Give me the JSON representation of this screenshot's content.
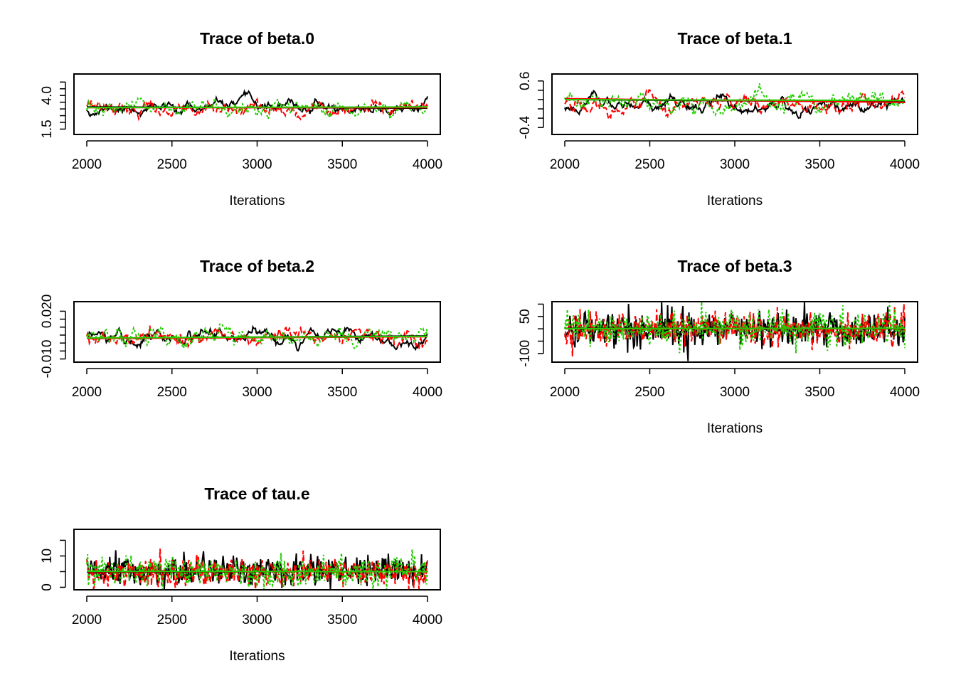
{
  "colors": {
    "chain1": "#000000",
    "chain2": "#ff0000",
    "chain3": "#22cc00",
    "frame": "#000000"
  },
  "chart_data": [
    {
      "type": "line",
      "title": "Trace of beta.0",
      "xlabel": "Iterations",
      "x_ticks": [
        "2000",
        "2500",
        "3000",
        "3500",
        "4000"
      ],
      "y_ticks": [
        "1.5",
        "4.0"
      ],
      "xlim": [
        2000,
        4000
      ],
      "ylim": [
        1.1,
        5.6
      ],
      "y_minor_ticks": [
        1.5,
        2.0,
        2.5,
        3.0,
        3.5,
        4.0,
        4.5,
        5.0
      ],
      "series": [
        {
          "chain": 1,
          "color": "#000000",
          "dash": "solid",
          "center": 3.05,
          "spread": 0.32,
          "ar": 0.93,
          "seed": 11
        },
        {
          "chain": 2,
          "color": "#ff0000",
          "dash": "dashed",
          "center": 3.0,
          "spread": 0.28,
          "ar": 0.85,
          "seed": 12
        },
        {
          "chain": 3,
          "color": "#22cc00",
          "dash": "dotted",
          "center": 3.0,
          "spread": 0.28,
          "ar": 0.8,
          "seed": 13
        }
      ],
      "mean_lines": [
        {
          "color": "#000000",
          "from": 3.15,
          "to": 3.05
        },
        {
          "color": "#ff0000",
          "from": 3.1,
          "to": 3.1
        },
        {
          "color": "#22cc00",
          "from": 3.1,
          "to": 3.15
        }
      ]
    },
    {
      "type": "line",
      "title": "Trace of beta.1",
      "xlabel": "Iterations",
      "x_ticks": [
        "2000",
        "2500",
        "3000",
        "3500",
        "4000"
      ],
      "y_ticks": [
        "-0.4",
        "0.6"
      ],
      "xlim": [
        2000,
        4000
      ],
      "ylim": [
        -0.55,
        0.75
      ],
      "y_minor_ticks": [
        -0.4,
        -0.2,
        0.0,
        0.2,
        0.4,
        0.6
      ],
      "series": [
        {
          "chain": 1,
          "color": "#000000",
          "dash": "solid",
          "center": 0.08,
          "spread": 0.12,
          "ar": 0.93,
          "seed": 21
        },
        {
          "chain": 2,
          "color": "#ff0000",
          "dash": "dashed",
          "center": 0.1,
          "spread": 0.1,
          "ar": 0.85,
          "seed": 22
        },
        {
          "chain": 3,
          "color": "#22cc00",
          "dash": "dotted",
          "center": 0.12,
          "spread": 0.1,
          "ar": 0.8,
          "seed": 23
        }
      ],
      "mean_lines": [
        {
          "color": "#000000",
          "from": 0.2,
          "to": 0.15
        },
        {
          "color": "#ff0000",
          "from": 0.22,
          "to": 0.14
        },
        {
          "color": "#22cc00",
          "from": 0.2,
          "to": 0.18
        }
      ]
    },
    {
      "type": "line",
      "title": "Trace of beta.2",
      "xlabel": "",
      "x_ticks": [
        "2000",
        "2500",
        "3000",
        "3500",
        "4000"
      ],
      "y_ticks": [
        "-0.010",
        "0.020"
      ],
      "xlim": [
        2000,
        4000
      ],
      "ylim": [
        -0.012,
        0.026
      ],
      "y_minor_ticks": [
        -0.01,
        -0.005,
        0.0,
        0.005,
        0.01,
        0.015,
        0.02
      ],
      "series": [
        {
          "chain": 1,
          "color": "#000000",
          "dash": "solid",
          "center": 0.004,
          "spread": 0.0032,
          "ar": 0.93,
          "seed": 31
        },
        {
          "chain": 2,
          "color": "#ff0000",
          "dash": "dashed",
          "center": 0.004,
          "spread": 0.0028,
          "ar": 0.85,
          "seed": 32
        },
        {
          "chain": 3,
          "color": "#22cc00",
          "dash": "dotted",
          "center": 0.004,
          "spread": 0.0028,
          "ar": 0.8,
          "seed": 33
        }
      ],
      "mean_lines": [
        {
          "color": "#000000",
          "from": 0.003,
          "to": 0.0045
        },
        {
          "color": "#ff0000",
          "from": 0.0028,
          "to": 0.004
        },
        {
          "color": "#22cc00",
          "from": 0.0032,
          "to": 0.0042
        }
      ]
    },
    {
      "type": "line",
      "title": "Trace of beta.3",
      "xlabel": "Iterations",
      "x_ticks": [
        "2000",
        "2500",
        "3000",
        "3500",
        "4000"
      ],
      "y_ticks": [
        "-100",
        "50"
      ],
      "xlim": [
        2000,
        4000
      ],
      "ylim": [
        -135,
        110
      ],
      "y_minor_ticks": [
        -100,
        -50,
        0,
        50,
        100
      ],
      "series": [
        {
          "chain": 1,
          "color": "#000000",
          "dash": "solid",
          "center": 0,
          "spread": 38,
          "ar": 0.05,
          "seed": 41
        },
        {
          "chain": 2,
          "color": "#ff0000",
          "dash": "dashed",
          "center": 0,
          "spread": 34,
          "ar": 0.05,
          "seed": 42
        },
        {
          "chain": 3,
          "color": "#22cc00",
          "dash": "dotted",
          "center": 0,
          "spread": 34,
          "ar": 0.05,
          "seed": 43
        }
      ],
      "mean_lines": [
        {
          "color": "#000000",
          "from": 2,
          "to": 0
        },
        {
          "color": "#ff0000",
          "from": 0,
          "to": 1
        },
        {
          "color": "#22cc00",
          "from": 1,
          "to": 2
        }
      ]
    },
    {
      "type": "line",
      "title": "Trace of tau.e",
      "xlabel": "Iterations",
      "x_ticks": [
        "2000",
        "2500",
        "3000",
        "3500",
        "4000"
      ],
      "y_ticks": [
        "0",
        "10"
      ],
      "xlim": [
        2000,
        4000
      ],
      "ylim": [
        -0.8,
        18.5
      ],
      "y_minor_ticks": [
        0,
        5,
        10,
        15
      ],
      "series": [
        {
          "chain": 1,
          "color": "#000000",
          "dash": "solid",
          "center": 5.0,
          "spread": 2.3,
          "ar": 0.1,
          "seed": 51
        },
        {
          "chain": 2,
          "color": "#ff0000",
          "dash": "dashed",
          "center": 5.0,
          "spread": 2.3,
          "ar": 0.1,
          "seed": 52
        },
        {
          "chain": 3,
          "color": "#22cc00",
          "dash": "dotted",
          "center": 5.0,
          "spread": 2.3,
          "ar": 0.1,
          "seed": 53
        }
      ],
      "mean_lines": [
        {
          "color": "#000000",
          "from": 4.9,
          "to": 5.0
        },
        {
          "color": "#ff0000",
          "from": 5.0,
          "to": 5.0
        },
        {
          "color": "#22cc00",
          "from": 5.1,
          "to": 5.0
        }
      ]
    }
  ]
}
